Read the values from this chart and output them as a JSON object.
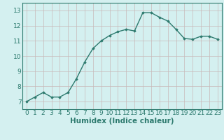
{
  "x": [
    0,
    1,
    2,
    3,
    4,
    5,
    6,
    7,
    8,
    9,
    10,
    11,
    12,
    13,
    14,
    15,
    16,
    17,
    18,
    19,
    20,
    21,
    22,
    23
  ],
  "y": [
    7.0,
    7.3,
    7.6,
    7.3,
    7.3,
    7.6,
    8.5,
    9.6,
    10.5,
    11.0,
    11.35,
    11.6,
    11.75,
    11.65,
    12.85,
    12.85,
    12.55,
    12.3,
    11.75,
    11.15,
    11.1,
    11.3,
    11.3,
    11.1
  ],
  "line_color": "#2d7a6e",
  "marker": "D",
  "marker_size": 1.8,
  "bg_color": "#d4f0f0",
  "grid_color": "#c8b8b8",
  "xlabel": "Humidex (Indice chaleur)",
  "xlabel_color": "#2d7a6e",
  "tick_color": "#2d7a6e",
  "ylim": [
    6.5,
    13.5
  ],
  "xlim": [
    -0.5,
    23.5
  ],
  "yticks": [
    7,
    8,
    9,
    10,
    11,
    12,
    13
  ],
  "xticks": [
    0,
    1,
    2,
    3,
    4,
    5,
    6,
    7,
    8,
    9,
    10,
    11,
    12,
    13,
    14,
    15,
    16,
    17,
    18,
    19,
    20,
    21,
    22,
    23
  ],
  "linewidth": 1.0,
  "font_size": 6.5,
  "xlabel_fontsize": 7.5
}
